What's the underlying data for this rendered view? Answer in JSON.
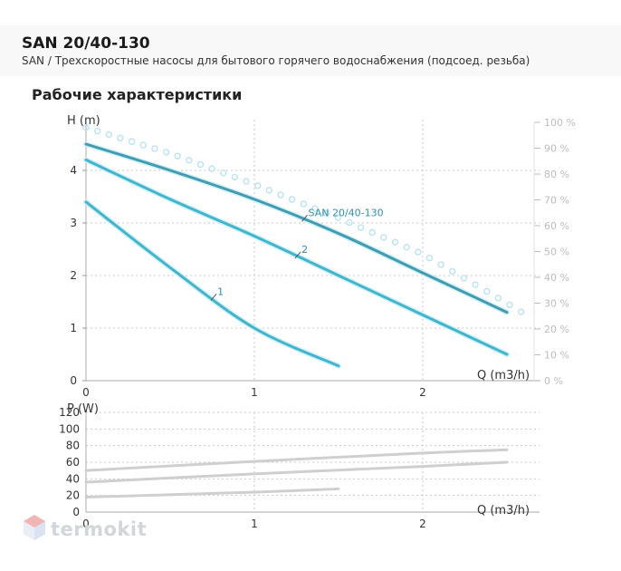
{
  "header": {
    "title": "SAN 20/40-130",
    "subtitle": "SAN / Трехскоростные насосы для бытового горячего водоснабжения (подсоед. резьба)"
  },
  "section": {
    "heading": "Рабочие характеристики"
  },
  "brand": {
    "logo_text": "termokit"
  },
  "colors": {
    "curve": "#3fb6cf",
    "curve_dark": "#3e9cb3",
    "efficiency": "#b9e4ef",
    "power": "#cfcfcf",
    "grid": "#c8c8c8",
    "right_axis": "#bcbcbc"
  },
  "chart_data": [
    {
      "type": "line",
      "ylabel": "H (m)",
      "xlabel": "Q (m3/h)",
      "xlim": [
        0,
        2.5
      ],
      "ylim": [
        0,
        5
      ],
      "x_ticks": [
        0,
        1,
        2
      ],
      "y_ticks": [
        0,
        1,
        2,
        3,
        4
      ],
      "y2_ticks": [
        "0 %",
        "10 %",
        "20 %",
        "30 %",
        "40 %",
        "50 %",
        "60 %",
        "70 %",
        "80 %",
        "90 %",
        "100 %"
      ],
      "y2lim": [
        0,
        100
      ],
      "series": [
        {
          "name": "1",
          "x": [
            0,
            0.5,
            1.0,
            1.5
          ],
          "y": [
            3.4,
            2.15,
            1.0,
            0.28
          ],
          "label_at": [
            0.78,
            1.65
          ]
        },
        {
          "name": "2",
          "x": [
            0,
            0.5,
            1.0,
            1.5,
            2.0,
            2.5
          ],
          "y": [
            4.2,
            3.45,
            2.75,
            2.0,
            1.25,
            0.5
          ],
          "label_at": [
            1.28,
            2.45
          ]
        },
        {
          "name": "SAN 20/40-130",
          "x": [
            0,
            0.5,
            1.0,
            1.5,
            2.0,
            2.5
          ],
          "y": [
            4.5,
            4.0,
            3.45,
            2.8,
            2.05,
            1.3
          ],
          "label_at": [
            1.32,
            3.15
          ]
        }
      ],
      "efficiency_pct": {
        "x": [
          0,
          0.5,
          1.0,
          1.5,
          2.0,
          2.5
        ],
        "y": [
          98,
          88,
          76,
          63,
          49,
          30
        ]
      }
    },
    {
      "type": "line",
      "ylabel": "P (W)",
      "xlabel": "Q (m3/h)",
      "xlim": [
        0,
        2.5
      ],
      "ylim": [
        0,
        120
      ],
      "x_ticks": [
        0,
        1,
        2
      ],
      "y_ticks": [
        0,
        20,
        40,
        60,
        80,
        100,
        120
      ],
      "series": [
        {
          "x": [
            0,
            1.0,
            1.5
          ],
          "y": [
            18,
            24,
            28
          ]
        },
        {
          "x": [
            0,
            1.0,
            2.0,
            2.5
          ],
          "y": [
            36,
            46,
            55,
            60
          ]
        },
        {
          "x": [
            0,
            1.0,
            2.0,
            2.5
          ],
          "y": [
            50,
            61,
            71,
            75
          ]
        }
      ]
    }
  ]
}
